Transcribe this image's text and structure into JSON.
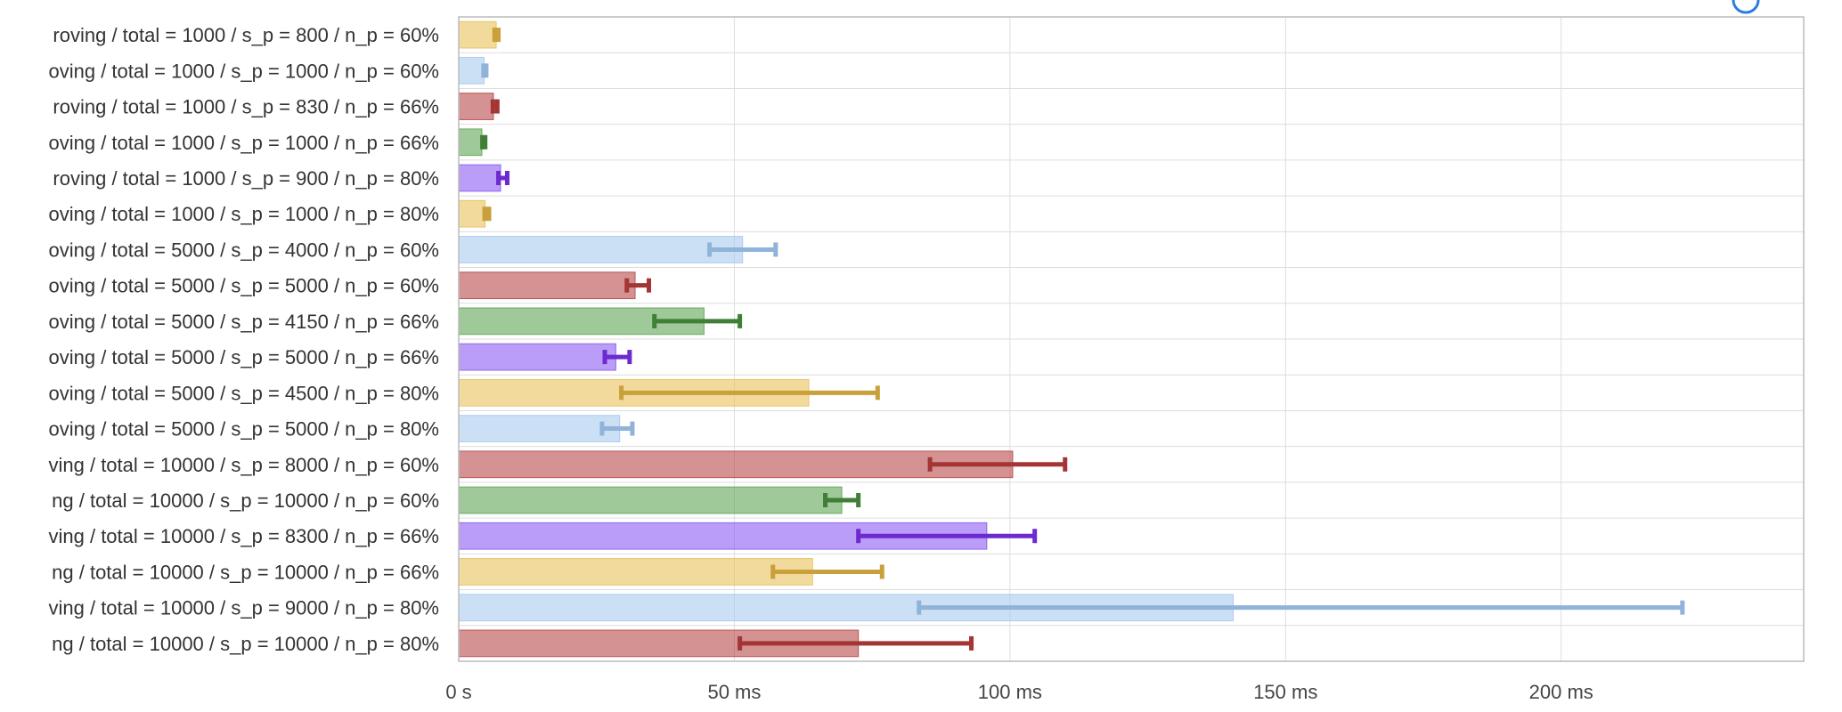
{
  "chart_data": {
    "type": "bar",
    "orientation": "horizontal",
    "categories": [
      "roving / total = 1000 / s_p = 800 / n_p = 60%",
      "oving / total = 1000 / s_p = 1000 / n_p = 60%",
      "roving / total = 1000 / s_p = 830 / n_p = 66%",
      "oving / total = 1000 / s_p = 1000 / n_p = 66%",
      "roving / total = 1000 / s_p = 900 / n_p = 80%",
      "oving / total = 1000 / s_p = 1000 / n_p = 80%",
      "oving / total = 5000 / s_p = 4000 / n_p = 60%",
      "oving / total = 5000 / s_p = 5000 / n_p = 60%",
      "oving / total = 5000 / s_p = 4150 / n_p = 66%",
      "oving / total = 5000 / s_p = 5000 / n_p = 66%",
      "oving / total = 5000 / s_p = 4500 / n_p = 80%",
      "oving / total = 5000 / s_p = 5000 / n_p = 80%",
      "ving / total = 10000 / s_p = 8000 / n_p = 60%",
      "ng / total = 10000 / s_p = 10000 / n_p = 60%",
      "ving / total = 10000 / s_p = 8300 / n_p = 66%",
      "ng / total = 10000 / s_p = 10000 / n_p = 66%",
      "ving / total = 10000 / s_p = 9000 / n_p = 80%",
      "ng / total = 10000 / s_p = 10000 / n_p = 80%"
    ],
    "unit": "ms",
    "values": [
      6.8,
      4.6,
      6.3,
      4.2,
      7.6,
      4.8,
      51.5,
      32.0,
      44.5,
      28.5,
      63.5,
      29.2,
      100.5,
      69.5,
      95.8,
      64.2,
      140.5,
      72.5
    ],
    "error_low": [
      6.5,
      4.5,
      6.2,
      4.3,
      7.2,
      4.7,
      45.5,
      30.5,
      35.5,
      26.5,
      29.5,
      26.0,
      85.5,
      66.5,
      72.5,
      57.0,
      83.5,
      51.0
    ],
    "error_high": [
      7.2,
      5.0,
      7.0,
      4.8,
      8.8,
      5.5,
      57.5,
      34.5,
      51.0,
      31.0,
      76.0,
      31.5,
      110.0,
      72.5,
      104.5,
      76.8,
      222.0,
      93.0
    ],
    "colors": [
      "#e8c15a",
      "#a9c9ee",
      "#b84a4a",
      "#5fa554",
      "#8b5cf0",
      "#e8c15a",
      "#a9c9ee",
      "#b84a4a",
      "#5fa554",
      "#8b5cf0",
      "#e8c15a",
      "#a9c9ee",
      "#b84a4a",
      "#5fa554",
      "#8b5cf0",
      "#e8c15a",
      "#a9c9ee",
      "#b84a4a"
    ],
    "error_colors": [
      "#c9a03a",
      "#8fb3d9",
      "#a33535",
      "#3f7f36",
      "#6d2ad1",
      "#c9a03a",
      "#8fb3d9",
      "#a33535",
      "#3f7f36",
      "#6d2ad1",
      "#c9a03a",
      "#8fb3d9",
      "#a33535",
      "#3f7f36",
      "#6d2ad1",
      "#c9a03a",
      "#8fb3d9",
      "#a33535"
    ],
    "xticks": [
      0,
      50,
      100,
      150,
      200
    ],
    "xtick_labels": [
      "0 s",
      "50 ms",
      "100 ms",
      "150 ms",
      "200 ms"
    ],
    "xlim": [
      0,
      244
    ],
    "grid": true,
    "legend": "none"
  }
}
